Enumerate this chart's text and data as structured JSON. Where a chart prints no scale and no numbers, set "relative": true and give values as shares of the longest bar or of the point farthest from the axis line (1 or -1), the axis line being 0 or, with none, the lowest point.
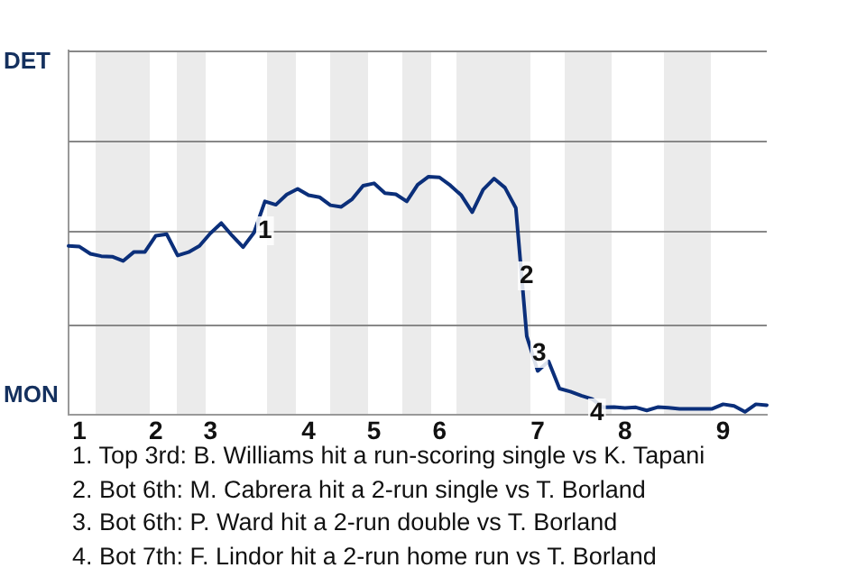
{
  "chart_data": {
    "type": "line",
    "relative": true,
    "ref_lines": [
      {
        "axis": "y",
        "value": 0.38,
        "color": "#888888"
      },
      {
        "axis": "y",
        "value": 0.77,
        "color": "#888888"
      },
      {
        "axis": "y",
        "value": 1.15,
        "color": "#888888"
      },
      {
        "axis": "y",
        "value": 1.53,
        "color": "#888888"
      }
    ],
    "categories": [
      null,
      "1",
      null,
      null,
      null,
      null,
      null,
      null,
      "2",
      null,
      null,
      null,
      null,
      "3",
      null,
      null,
      null,
      null,
      null,
      null,
      null,
      null,
      "4",
      null,
      null,
      null,
      null,
      null,
      "5",
      null,
      null,
      null,
      null,
      null,
      "6",
      null,
      null,
      null,
      null,
      null,
      null,
      null,
      null,
      "7",
      null,
      null,
      null,
      null,
      null,
      null,
      null,
      "8",
      null,
      null,
      null,
      null,
      null,
      null,
      null,
      null,
      "9",
      null,
      null,
      null,
      null
    ],
    "series": [
      {
        "color": "#0b2f7a",
        "values": [
          0.709,
          0.706,
          0.676,
          0.666,
          0.664,
          0.646,
          0.684,
          0.684,
          0.752,
          0.758,
          0.669,
          0.683,
          0.709,
          0.762,
          0.805,
          0.752,
          0.704,
          0.765,
          0.896,
          0.882,
          0.925,
          0.949,
          0.922,
          0.914,
          0.88,
          0.873,
          0.906,
          0.962,
          0.972,
          0.931,
          0.926,
          0.896,
          0.966,
          1,
          0.997,
          0.963,
          0.922,
          0.851,
          0.945,
          0.992,
          0.954,
          0.868,
          0.33,
          0.184,
          0.224,
          0.11,
          0.097,
          0.08,
          0.066,
          0.031,
          0.032,
          0.028,
          0.031,
          0.018,
          0.032,
          0.029,
          0.025,
          0.025,
          0.025,
          0.025,
          0.044,
          0.037,
          0.012,
          0.044,
          0.04
        ]
      }
    ],
    "annotations": [
      "DET",
      "MON",
      "1",
      "2",
      "3",
      "4",
      "1. Top 3rd: B. Williams hit a run-scoring single vs K. Tapani",
      "2. Bot 6th: M. Cabrera hit a 2-run single vs T. Borland",
      "3. Bot 6th: P. Ward hit a 2-run double vs T. Borland",
      "4. Bot 7th: F. Lindor hit a 2-run home run vs T. Borland"
    ]
  }
}
